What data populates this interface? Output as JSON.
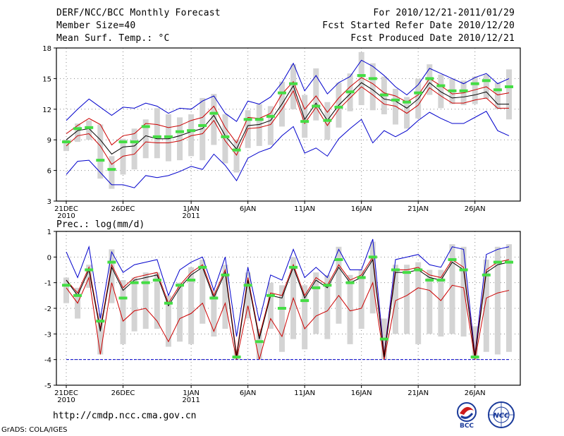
{
  "header": {
    "title": "DERF/NCC/BCC Monthly Forecast",
    "member_size": "Member Size=40",
    "variable": "Mean Surf. Temp.: °C",
    "period": "For 2010/12/21-2011/01/29",
    "fcst_started": "Fcst Started Refer Date 2010/12/20",
    "fcst_produced": "Fcst Produced Date 2010/12/21"
  },
  "panel2_label": "Prec.: log(mm/d)",
  "footer": {
    "url": "http://cmdp.ncc.cma.gov.cn",
    "credit": "GrADS: COLA/IGES",
    "logo_bcc_text": "BCC",
    "logo_ncc_text": "NCC"
  },
  "colors": {
    "box": "#d4d4d4",
    "mean": "#000000",
    "spread": "#cc0000",
    "extreme": "#0000cc",
    "obs": "#44dd44",
    "grid": "#888888"
  },
  "chart_data": [
    {
      "type": "box-line",
      "title": "Mean Surf. Temp.: °C",
      "ylim": [
        3,
        18
      ],
      "yticks": [
        3,
        6,
        9,
        12,
        15,
        18
      ],
      "xtick_labels": [
        "21DEC\n2010",
        "26DEC",
        "1JAN\n2011",
        "6JAN",
        "11JAN",
        "16JAN",
        "21JAN",
        "26JAN"
      ],
      "xtick_days": [
        1,
        6,
        12,
        17,
        22,
        27,
        32,
        37
      ],
      "days": 40,
      "mean": [
        9.0,
        9.9,
        10.1,
        9.0,
        7.6,
        8.3,
        8.4,
        9.4,
        9.1,
        9.1,
        9.4,
        9.8,
        10.1,
        11.4,
        9.4,
        8.1,
        10.4,
        10.5,
        10.9,
        12.5,
        14.3,
        11.0,
        12.6,
        10.9,
        12.4,
        13.5,
        14.6,
        13.9,
        13.0,
        12.8,
        12.1,
        13.0,
        14.6,
        13.7,
        13.1,
        13.2,
        13.4,
        13.7,
        12.5,
        12.5
      ],
      "upper": [
        9.6,
        10.4,
        11.1,
        10.5,
        8.5,
        9.4,
        9.6,
        10.6,
        10.5,
        10.2,
        10.4,
        10.9,
        11.2,
        12.3,
        10.2,
        8.7,
        11.2,
        11.1,
        11.6,
        13.5,
        14.7,
        12.0,
        13.3,
        11.7,
        13.1,
        14.2,
        15.1,
        14.5,
        13.6,
        13.3,
        12.7,
        13.4,
        15.0,
        14.3,
        13.5,
        13.6,
        13.9,
        14.2,
        13.4,
        13.6
      ],
      "lower": [
        8.4,
        9.4,
        9.6,
        8.4,
        6.6,
        7.4,
        7.6,
        8.8,
        8.7,
        8.7,
        8.9,
        9.4,
        9.6,
        10.9,
        8.9,
        7.5,
        10.1,
        10.2,
        10.5,
        12.0,
        13.8,
        10.6,
        12.2,
        10.4,
        12.0,
        13.1,
        14.2,
        13.4,
        12.5,
        12.3,
        11.6,
        12.4,
        14.1,
        13.3,
        12.6,
        12.6,
        12.9,
        13.1,
        12.1,
        12.1
      ],
      "max": [
        10.9,
        12.0,
        13.0,
        12.2,
        11.4,
        12.2,
        12.1,
        12.6,
        12.3,
        11.6,
        12.1,
        12.0,
        12.8,
        13.3,
        11.6,
        10.8,
        12.8,
        12.5,
        13.2,
        14.6,
        16.5,
        13.8,
        15.3,
        13.5,
        14.6,
        15.2,
        16.8,
        16.2,
        15.3,
        14.2,
        13.4,
        14.4,
        16.0,
        15.5,
        15.0,
        14.5,
        15.1,
        15.5,
        14.5,
        15.0
      ],
      "min": [
        5.6,
        6.9,
        7.0,
        5.8,
        4.6,
        4.6,
        4.3,
        5.5,
        5.3,
        5.5,
        5.9,
        6.4,
        6.1,
        7.6,
        6.5,
        5.0,
        7.2,
        7.8,
        8.2,
        9.4,
        10.3,
        7.7,
        8.2,
        7.4,
        9.1,
        10.1,
        11.0,
        8.7,
        9.9,
        9.3,
        9.9,
        10.9,
        11.7,
        11.1,
        10.6,
        10.6,
        11.2,
        11.8,
        9.9,
        9.4
      ],
      "box_top": [
        9.0,
        10.6,
        10.9,
        10.5,
        7.4,
        9.1,
        10.1,
        11.0,
        12.1,
        11.5,
        11.2,
        11.5,
        13.1,
        13.5,
        11.5,
        9.0,
        11.9,
        12.5,
        12.3,
        14.7,
        16.4,
        13.4,
        16.0,
        12.7,
        14.6,
        15.5,
        17.6,
        16.5,
        15.2,
        14.0,
        13.2,
        15.0,
        16.4,
        15.4,
        15.0,
        14.8,
        15.2,
        15.4,
        14.6,
        15.9
      ],
      "box_bottom": [
        7.9,
        8.8,
        9.0,
        5.2,
        4.2,
        5.6,
        6.1,
        7.2,
        7.2,
        6.9,
        7.0,
        7.4,
        7.0,
        8.5,
        6.7,
        5.8,
        8.2,
        8.4,
        8.5,
        10.3,
        12.0,
        9.2,
        10.9,
        9.0,
        10.2,
        11.8,
        12.4,
        11.9,
        11.5,
        10.5,
        10.1,
        11.1,
        13.4,
        12.1,
        12.5,
        12.4,
        12.5,
        13.0,
        12.0,
        11.0
      ],
      "observed": [
        8.8,
        10.1,
        10.2,
        7.0,
        6.1,
        8.8,
        8.8,
        10.3,
        9.3,
        9.3,
        9.8,
        9.9,
        10.4,
        11.6,
        9.3,
        8.0,
        11.0,
        11.0,
        11.3,
        13.6,
        14.5,
        10.8,
        12.3,
        10.9,
        12.2,
        13.7,
        15.3,
        15.0,
        13.4,
        12.9,
        12.7,
        13.6,
        15.0,
        14.3,
        13.8,
        13.8,
        14.5,
        14.8,
        13.9,
        14.2
      ]
    },
    {
      "type": "box-line",
      "title": "Prec.: log(mm/d)",
      "ylim": [
        -5,
        1
      ],
      "yticks": [
        -5,
        -4,
        -3,
        -2,
        -1,
        0,
        1
      ],
      "xtick_labels": [
        "21DEC\n2010",
        "26DEC",
        "1JAN\n2011",
        "6JAN",
        "11JAN",
        "16JAN",
        "21JAN",
        "26JAN"
      ],
      "xtick_days": [
        1,
        6,
        12,
        17,
        22,
        27,
        32,
        37
      ],
      "days": 40,
      "baseline": -4,
      "mean": [
        -0.9,
        -1.5,
        -0.5,
        -2.9,
        -0.4,
        -1.3,
        -0.9,
        -0.8,
        -0.7,
        -1.9,
        -1.2,
        -0.7,
        -0.4,
        -1.6,
        -0.6,
        -3.9,
        -0.9,
        -3.2,
        -1.5,
        -1.6,
        -0.4,
        -1.6,
        -0.9,
        -1.2,
        -0.4,
        -1.0,
        -0.8,
        -0.1,
        -3.9,
        -0.6,
        -0.6,
        -0.5,
        -0.8,
        -0.9,
        -0.2,
        -0.5,
        -3.9,
        -0.6,
        -0.3,
        -0.2
      ],
      "upper": [
        -0.9,
        -1.4,
        -0.4,
        -2.8,
        -0.3,
        -1.2,
        -0.8,
        -0.7,
        -0.6,
        -1.8,
        -1.1,
        -0.6,
        -0.3,
        -1.5,
        -0.5,
        -3.8,
        -0.8,
        -3.1,
        -1.4,
        -1.5,
        -0.3,
        -1.5,
        -0.8,
        -1.1,
        -0.3,
        -0.9,
        -0.7,
        0.0,
        -3.8,
        -0.5,
        -0.5,
        -0.4,
        -0.7,
        -0.8,
        -0.1,
        -0.4,
        -3.8,
        -0.5,
        -0.2,
        -0.1
      ],
      "lower": [
        -1.2,
        -1.8,
        -0.8,
        -3.8,
        -1.0,
        -2.5,
        -2.1,
        -2.0,
        -2.5,
        -3.3,
        -2.4,
        -2.2,
        -1.8,
        -2.9,
        -1.8,
        -4.0,
        -1.9,
        -4.0,
        -2.4,
        -3.1,
        -1.6,
        -2.8,
        -2.3,
        -2.1,
        -1.5,
        -2.1,
        -2.0,
        -1.0,
        -4.0,
        -1.7,
        -1.5,
        -1.2,
        -1.3,
        -1.7,
        -1.1,
        -1.2,
        -4.0,
        -1.6,
        -1.4,
        -1.3
      ],
      "max": [
        0.2,
        -0.8,
        0.4,
        -2.4,
        0.2,
        -0.6,
        -0.3,
        -0.2,
        -0.1,
        -1.5,
        -0.5,
        -0.2,
        0.0,
        -1.3,
        0.0,
        -3.1,
        -0.4,
        -2.5,
        -0.7,
        -0.9,
        0.3,
        -0.8,
        -0.4,
        -0.8,
        0.3,
        -0.5,
        -0.5,
        0.7,
        -3.8,
        -0.1,
        0.0,
        0.1,
        -0.3,
        -0.4,
        0.4,
        0.3,
        -3.8,
        0.1,
        0.3,
        0.4
      ],
      "box_top": [
        -0.8,
        -1.2,
        -0.3,
        -2.2,
        0.3,
        -0.9,
        -0.8,
        -0.6,
        -0.6,
        -1.5,
        -1.0,
        -0.4,
        -0.1,
        -1.3,
        -0.3,
        -3.6,
        -0.6,
        -2.8,
        -1.0,
        -1.1,
        0.0,
        -1.1,
        -0.6,
        -0.7,
        0.4,
        -0.7,
        -0.5,
        0.6,
        -2.4,
        -0.3,
        -0.3,
        -0.2,
        -0.5,
        -0.5,
        0.5,
        0.4,
        -2.7,
        -0.1,
        0.4,
        0.5
      ],
      "box_bottom": [
        -1.8,
        -2.4,
        -1.2,
        -3.8,
        -1.8,
        -3.4,
        -2.9,
        -2.8,
        -2.8,
        -3.5,
        -3.3,
        -3.4,
        -2.6,
        -3.1,
        -2.8,
        -4.0,
        -2.4,
        -4.0,
        -2.8,
        -3.7,
        -3.2,
        -3.6,
        -3.0,
        -3.2,
        -2.6,
        -3.4,
        -2.8,
        -2.2,
        -4.0,
        -3.0,
        -3.0,
        -3.4,
        -3.0,
        -3.1,
        -3.0,
        -3.1,
        -4.0,
        -3.7,
        -3.8,
        -3.7
      ],
      "observed": [
        -1.1,
        -1.5,
        -0.5,
        -2.5,
        -0.2,
        -1.6,
        -1.0,
        -1.0,
        -0.9,
        -1.8,
        -1.1,
        -0.9,
        -0.4,
        -1.6,
        -0.7,
        -3.9,
        -1.1,
        -3.3,
        -1.5,
        -2.0,
        -0.4,
        -1.7,
        -1.2,
        -1.1,
        -0.1,
        -1.0,
        -0.8,
        0.0,
        -3.2,
        -0.5,
        -0.6,
        -0.5,
        -0.9,
        -0.9,
        -0.1,
        -0.5,
        -3.9,
        -0.7,
        -0.2,
        -0.2
      ]
    }
  ]
}
